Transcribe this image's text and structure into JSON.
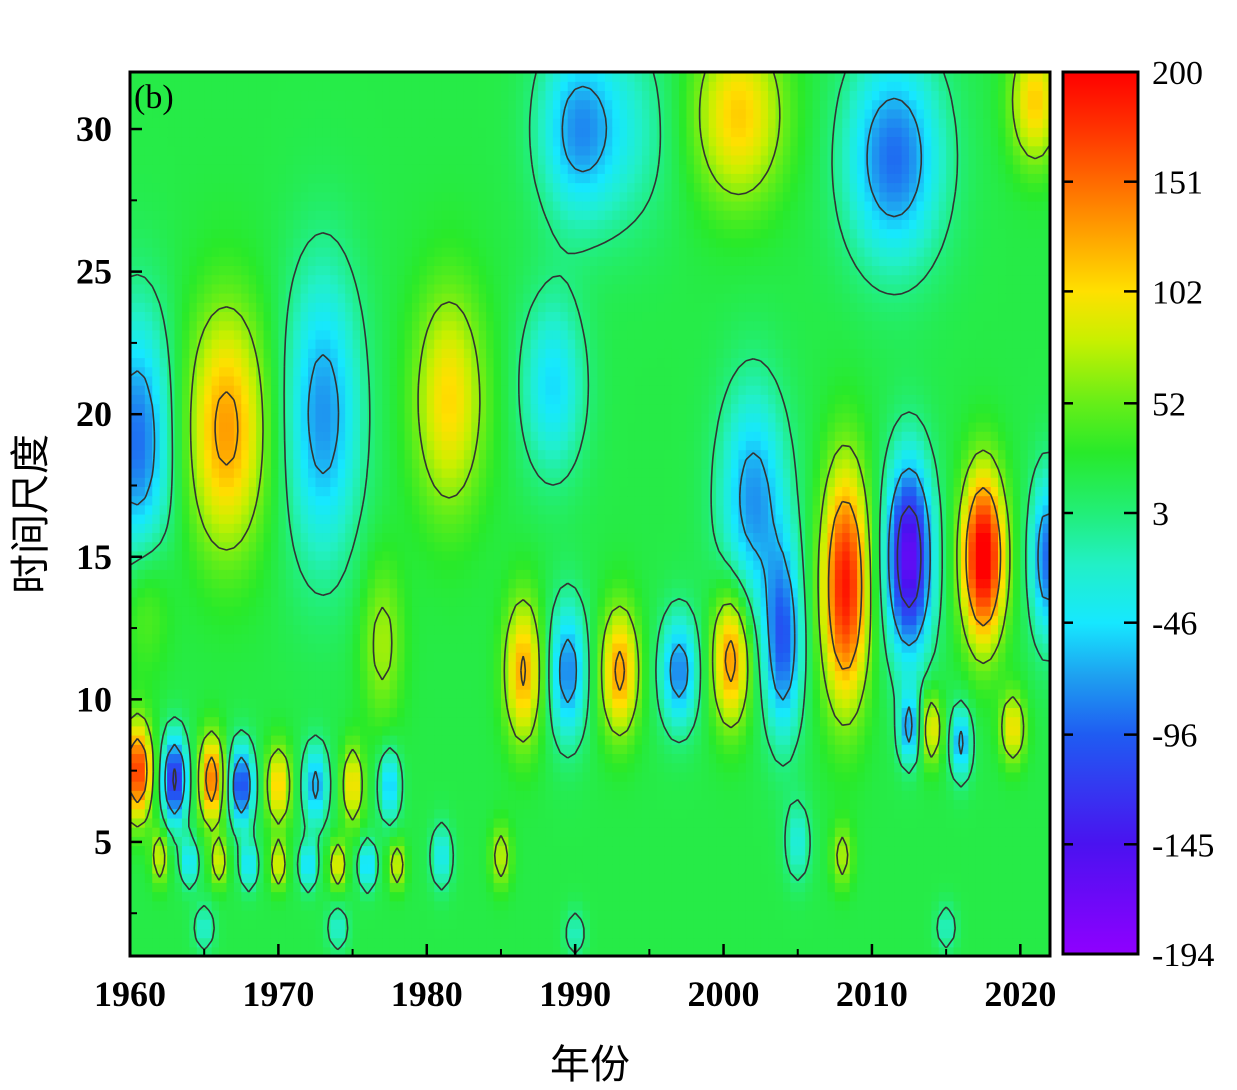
{
  "chart_data": {
    "type": "heatmap",
    "panel_label": "(b)",
    "xlabel": "年份",
    "ylabel": "时间尺度",
    "x_range": [
      1960,
      2022
    ],
    "y_range": [
      1,
      32
    ],
    "x_ticks": [
      1960,
      1970,
      1980,
      1990,
      2000,
      2010,
      2020
    ],
    "y_ticks": [
      5,
      10,
      15,
      20,
      25,
      30
    ],
    "colorbar": {
      "range": [
        -194,
        200
      ],
      "ticks": [
        200,
        151,
        102,
        52,
        3,
        -46,
        -96,
        -145,
        -194
      ],
      "stops": [
        {
          "v": -194,
          "c": "#8f00ff"
        },
        {
          "v": -145,
          "c": "#4a12f0"
        },
        {
          "v": -96,
          "c": "#1f5cf2"
        },
        {
          "v": -70,
          "c": "#1ea0f0"
        },
        {
          "v": -46,
          "c": "#16e8ff"
        },
        {
          "v": -20,
          "c": "#22f0c6"
        },
        {
          "v": 3,
          "c": "#22ee78"
        },
        {
          "v": 30,
          "c": "#28ea2a"
        },
        {
          "v": 52,
          "c": "#66ee18"
        },
        {
          "v": 80,
          "c": "#c8f000"
        },
        {
          "v": 102,
          "c": "#ffe000"
        },
        {
          "v": 125,
          "c": "#ffa800"
        },
        {
          "v": 151,
          "c": "#ff6a00"
        },
        {
          "v": 175,
          "c": "#ff3200"
        },
        {
          "v": 200,
          "c": "#ff0000"
        }
      ]
    },
    "contour_levels": [
      -120,
      -60,
      0,
      60,
      120
    ],
    "background_value": 20,
    "features": [
      {
        "x": 1960.5,
        "y": 19,
        "sx": 1.6,
        "sy": 3.2,
        "a": -110
      },
      {
        "x": 1966.5,
        "y": 19.5,
        "sx": 1.9,
        "sy": 3.0,
        "a": 110
      },
      {
        "x": 1973.0,
        "y": 20,
        "sx": 1.8,
        "sy": 3.6,
        "a": -95
      },
      {
        "x": 1981.5,
        "y": 20.5,
        "sx": 1.7,
        "sy": 2.8,
        "a": 85
      },
      {
        "x": 1988.5,
        "y": 21,
        "sx": 1.5,
        "sy": 2.2,
        "a": -70
      },
      {
        "x": 2002.0,
        "y": 17,
        "sx": 1.6,
        "sy": 2.8,
        "a": -95
      },
      {
        "x": 1993.0,
        "y": 30,
        "sx": 2.5,
        "sy": 2.5,
        "a": -45
      },
      {
        "x": 1990.0,
        "y": 30,
        "sx": 1.8,
        "sy": 2.2,
        "a": -75
      },
      {
        "x": 2001.0,
        "y": 30.5,
        "sx": 2.2,
        "sy": 2.2,
        "a": 90
      },
      {
        "x": 2011.5,
        "y": 29,
        "sx": 2.3,
        "sy": 2.6,
        "a": -110
      },
      {
        "x": 2021.0,
        "y": 31,
        "sx": 1.2,
        "sy": 1.6,
        "a": 90
      },
      {
        "x": 1977.0,
        "y": 12,
        "sx": 1.0,
        "sy": 2.0,
        "a": 50
      },
      {
        "x": 1961.0,
        "y": 13.5,
        "sx": 1.2,
        "sy": 1.8,
        "a": 40
      },
      {
        "x": 1986.5,
        "y": 11,
        "sx": 0.9,
        "sy": 1.8,
        "a": 105
      },
      {
        "x": 1989.5,
        "y": 11,
        "sx": 0.9,
        "sy": 1.7,
        "a": -100
      },
      {
        "x": 1993.0,
        "y": 11,
        "sx": 0.9,
        "sy": 1.6,
        "a": 110
      },
      {
        "x": 1997.0,
        "y": 11,
        "sx": 0.9,
        "sy": 1.4,
        "a": -100
      },
      {
        "x": 2000.5,
        "y": 11.5,
        "sx": 0.9,
        "sy": 1.7,
        "a": 120
      },
      {
        "x": 2004.0,
        "y": 12,
        "sx": 0.9,
        "sy": 2.3,
        "a": -115
      },
      {
        "x": 2008.2,
        "y": 14,
        "sx": 1.1,
        "sy": 2.9,
        "a": 170
      },
      {
        "x": 2012.5,
        "y": 15,
        "sx": 1.1,
        "sy": 2.4,
        "a": -185
      },
      {
        "x": 2017.5,
        "y": 15,
        "sx": 1.0,
        "sy": 2.1,
        "a": 195
      },
      {
        "x": 2021.8,
        "y": 15,
        "sx": 0.8,
        "sy": 2.0,
        "a": -110
      },
      {
        "x": 2012.5,
        "y": 9,
        "sx": 0.5,
        "sy": 0.9,
        "a": -90
      },
      {
        "x": 2014.0,
        "y": 9,
        "sx": 0.5,
        "sy": 0.9,
        "a": 80
      },
      {
        "x": 2016.0,
        "y": 8.5,
        "sx": 0.5,
        "sy": 0.9,
        "a": -90
      },
      {
        "x": 2019.5,
        "y": 9,
        "sx": 0.6,
        "sy": 0.9,
        "a": 80
      },
      {
        "x": 1960.5,
        "y": 7.5,
        "sx": 0.7,
        "sy": 1.2,
        "a": 155
      },
      {
        "x": 1963.0,
        "y": 7.2,
        "sx": 0.6,
        "sy": 1.1,
        "a": -150
      },
      {
        "x": 1965.5,
        "y": 7.2,
        "sx": 0.6,
        "sy": 1.1,
        "a": 130
      },
      {
        "x": 1967.5,
        "y": 7.0,
        "sx": 0.6,
        "sy": 1.0,
        "a": -130
      },
      {
        "x": 1970.0,
        "y": 7.0,
        "sx": 0.6,
        "sy": 1.0,
        "a": 90
      },
      {
        "x": 1972.5,
        "y": 7.0,
        "sx": 0.6,
        "sy": 1.0,
        "a": -90
      },
      {
        "x": 1975.0,
        "y": 7.0,
        "sx": 0.5,
        "sy": 1.0,
        "a": 85
      },
      {
        "x": 1977.5,
        "y": 7.0,
        "sx": 0.5,
        "sy": 0.9,
        "a": -80
      },
      {
        "x": 1962.0,
        "y": 4.5,
        "sx": 0.4,
        "sy": 0.7,
        "a": 70
      },
      {
        "x": 1964.0,
        "y": 4.3,
        "sx": 0.4,
        "sy": 0.6,
        "a": -70
      },
      {
        "x": 1966.0,
        "y": 4.3,
        "sx": 0.4,
        "sy": 0.6,
        "a": 70
      },
      {
        "x": 1968.0,
        "y": 4.2,
        "sx": 0.4,
        "sy": 0.6,
        "a": -70
      },
      {
        "x": 1970.0,
        "y": 4.2,
        "sx": 0.4,
        "sy": 0.6,
        "a": 75
      },
      {
        "x": 1972.0,
        "y": 4.2,
        "sx": 0.4,
        "sy": 0.6,
        "a": -75
      },
      {
        "x": 1974.0,
        "y": 4.2,
        "sx": 0.4,
        "sy": 0.6,
        "a": 80
      },
      {
        "x": 1976.0,
        "y": 4.2,
        "sx": 0.4,
        "sy": 0.6,
        "a": -80
      },
      {
        "x": 1978.0,
        "y": 4.2,
        "sx": 0.4,
        "sy": 0.6,
        "a": 70
      },
      {
        "x": 1981.0,
        "y": 4.5,
        "sx": 0.5,
        "sy": 0.8,
        "a": -60
      },
      {
        "x": 1985.0,
        "y": 4.5,
        "sx": 0.5,
        "sy": 0.8,
        "a": 60
      },
      {
        "x": 2005.0,
        "y": 5.0,
        "sx": 0.6,
        "sy": 1.0,
        "a": -50
      },
      {
        "x": 2008.0,
        "y": 4.5,
        "sx": 0.5,
        "sy": 0.8,
        "a": 55
      },
      {
        "x": 1965.0,
        "y": 2.0,
        "sx": 0.5,
        "sy": 0.6,
        "a": -45
      },
      {
        "x": 1974.0,
        "y": 2.0,
        "sx": 0.5,
        "sy": 0.6,
        "a": -45
      },
      {
        "x": 1990.0,
        "y": 1.8,
        "sx": 0.5,
        "sy": 0.6,
        "a": -40
      },
      {
        "x": 2015.0,
        "y": 2.0,
        "sx": 0.5,
        "sy": 0.6,
        "a": -40
      }
    ]
  }
}
